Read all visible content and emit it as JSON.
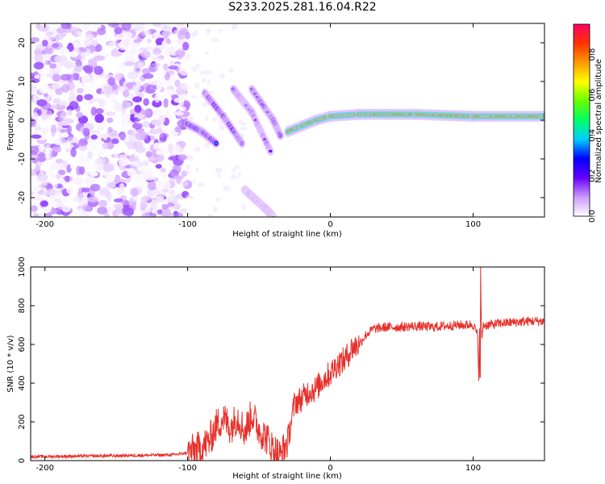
{
  "title": "S233.2025.281.16.04.R22",
  "chart_data": [
    {
      "type": "heatmap",
      "xlabel": "Height of straight line (km)",
      "ylabel": "Frequency (Hz)",
      "xlim": [
        -210,
        150
      ],
      "ylim": [
        -25,
        25
      ],
      "xticks": [
        -200,
        -100,
        0,
        100
      ],
      "yticks": [
        20,
        10,
        0,
        -10,
        -20
      ],
      "colorbar": {
        "label": "Normalized spectral amplitude",
        "range": [
          0,
          0.95
        ],
        "ticks": [
          0.0,
          0.2,
          0.4,
          0.6,
          0.8
        ],
        "colors": [
          "#ffffff",
          "#cc99ff",
          "#6600ff",
          "#0000ff",
          "#00ccff",
          "#00ff66",
          "#66ff00",
          "#ffff00",
          "#ff9900",
          "#ff3300",
          "#ff0066"
        ]
      },
      "features": [
        {
          "name": "carrier",
          "points": [
            [
              -30,
              -3
            ],
            [
              -20,
              -1.5
            ],
            [
              -10,
              0
            ],
            [
              0,
              1
            ],
            [
              20,
              1.5
            ],
            [
              60,
              1.5
            ],
            [
              100,
              1
            ],
            [
              150,
              1
            ]
          ],
          "peak": 0.85
        },
        {
          "name": "streak-1",
          "points": [
            [
              -100,
              -1
            ],
            [
              -90,
              -3
            ],
            [
              -80,
              -6
            ]
          ],
          "peak": 0.35
        },
        {
          "name": "streak-2",
          "points": [
            [
              -88,
              7
            ],
            [
              -75,
              1
            ],
            [
              -62,
              -6
            ]
          ],
          "peak": 0.3
        },
        {
          "name": "streak-3",
          "points": [
            [
              -68,
              8
            ],
            [
              -55,
              2
            ],
            [
              -42,
              -8
            ]
          ],
          "peak": 0.2
        },
        {
          "name": "streak-4",
          "points": [
            [
              -55,
              8
            ],
            [
              -40,
              0
            ],
            [
              -35,
              -4
            ]
          ],
          "peak": 0.25
        },
        {
          "name": "streak-5",
          "points": [
            [
              -60,
              -18
            ],
            [
              -45,
              -23
            ],
            [
              -40,
              -25
            ]
          ],
          "peak": 0.1
        }
      ]
    },
    {
      "type": "line",
      "xlabel": "Height of straight line (km)",
      "ylabel": "SNR (10 * v/v)",
      "xlim": [
        -210,
        150
      ],
      "ylim": [
        0,
        1000
      ],
      "xticks": [
        -200,
        -100,
        0,
        100
      ],
      "yticks": [
        0,
        200,
        400,
        600,
        800,
        1000
      ],
      "series": [
        {
          "name": "SNR",
          "color": "#e8302a",
          "x": [
            -210,
            -150,
            -110,
            -100,
            -90,
            -85,
            -80,
            -75,
            -70,
            -65,
            -60,
            -55,
            -50,
            -45,
            -40,
            -35,
            -30,
            -25,
            -20,
            -15,
            -10,
            -5,
            0,
            5,
            10,
            15,
            20,
            25,
            30,
            40,
            50,
            60,
            70,
            80,
            90,
            95,
            100,
            103,
            104,
            105,
            106,
            107,
            110,
            120,
            130,
            140,
            150
          ],
          "y": [
            20,
            25,
            30,
            40,
            70,
            100,
            180,
            220,
            170,
            230,
            150,
            240,
            160,
            120,
            60,
            25,
            100,
            300,
            320,
            360,
            370,
            420,
            450,
            500,
            520,
            580,
            600,
            650,
            680,
            690,
            690,
            695,
            690,
            695,
            700,
            700,
            705,
            650,
            430,
            1000,
            620,
            700,
            700,
            710,
            715,
            720,
            720
          ]
        }
      ]
    }
  ]
}
